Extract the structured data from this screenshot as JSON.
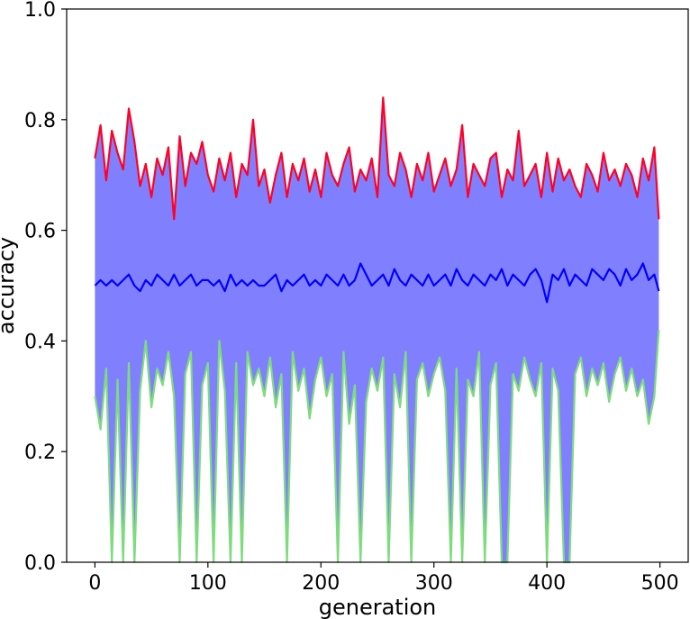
{
  "chart_data": {
    "type": "line",
    "xlabel": "generation",
    "ylabel": "accuracy",
    "xlim": [
      -25,
      525
    ],
    "ylim": [
      0.0,
      1.0
    ],
    "x_ticks": [
      0,
      100,
      200,
      300,
      400,
      500
    ],
    "x_tick_labels": [
      "0",
      "100",
      "200",
      "300",
      "400",
      "500"
    ],
    "y_ticks": [
      0.0,
      0.2,
      0.4,
      0.6,
      0.8,
      1.0
    ],
    "y_tick_labels": [
      "0.0",
      "0.2",
      "0.4",
      "0.6",
      "0.8",
      "1.0"
    ],
    "grid": false,
    "legend": "none",
    "band_color": "#8080ff",
    "series": [
      {
        "role": "max",
        "color": "#ff0028"
      },
      {
        "role": "mean",
        "color": "#0000ff"
      },
      {
        "role": "min",
        "color": "#7fdb7f"
      }
    ],
    "x": [
      0,
      5,
      10,
      15,
      20,
      25,
      30,
      35,
      40,
      45,
      50,
      55,
      60,
      65,
      70,
      75,
      80,
      85,
      90,
      95,
      100,
      105,
      110,
      115,
      120,
      125,
      130,
      135,
      140,
      145,
      150,
      155,
      160,
      165,
      170,
      175,
      180,
      185,
      190,
      195,
      200,
      205,
      210,
      215,
      220,
      225,
      230,
      235,
      240,
      245,
      250,
      255,
      260,
      265,
      270,
      275,
      280,
      285,
      290,
      295,
      300,
      305,
      310,
      315,
      320,
      325,
      330,
      335,
      340,
      345,
      350,
      355,
      360,
      365,
      370,
      375,
      380,
      385,
      390,
      395,
      400,
      405,
      410,
      415,
      420,
      425,
      430,
      435,
      440,
      445,
      450,
      455,
      460,
      465,
      470,
      475,
      480,
      485,
      490,
      495,
      499
    ],
    "max": [
      0.73,
      0.79,
      0.69,
      0.78,
      0.74,
      0.71,
      0.82,
      0.76,
      0.68,
      0.72,
      0.66,
      0.73,
      0.7,
      0.75,
      0.62,
      0.77,
      0.68,
      0.74,
      0.72,
      0.76,
      0.7,
      0.67,
      0.73,
      0.69,
      0.74,
      0.66,
      0.72,
      0.7,
      0.8,
      0.68,
      0.71,
      0.65,
      0.7,
      0.74,
      0.66,
      0.72,
      0.69,
      0.73,
      0.67,
      0.71,
      0.66,
      0.74,
      0.7,
      0.68,
      0.72,
      0.75,
      0.67,
      0.71,
      0.69,
      0.73,
      0.66,
      0.84,
      0.7,
      0.68,
      0.74,
      0.71,
      0.66,
      0.72,
      0.69,
      0.74,
      0.67,
      0.7,
      0.73,
      0.68,
      0.71,
      0.79,
      0.66,
      0.72,
      0.7,
      0.68,
      0.73,
      0.74,
      0.66,
      0.71,
      0.69,
      0.78,
      0.68,
      0.7,
      0.72,
      0.66,
      0.74,
      0.67,
      0.73,
      0.69,
      0.71,
      0.68,
      0.66,
      0.72,
      0.7,
      0.67,
      0.74,
      0.69,
      0.71,
      0.68,
      0.72,
      0.7,
      0.66,
      0.73,
      0.69,
      0.75,
      0.62
    ],
    "mean": [
      0.5,
      0.51,
      0.5,
      0.51,
      0.5,
      0.51,
      0.52,
      0.5,
      0.49,
      0.51,
      0.5,
      0.52,
      0.51,
      0.5,
      0.52,
      0.5,
      0.51,
      0.52,
      0.5,
      0.51,
      0.51,
      0.5,
      0.51,
      0.49,
      0.52,
      0.5,
      0.51,
      0.5,
      0.51,
      0.5,
      0.5,
      0.51,
      0.52,
      0.49,
      0.51,
      0.5,
      0.51,
      0.52,
      0.5,
      0.51,
      0.5,
      0.52,
      0.51,
      0.5,
      0.52,
      0.5,
      0.51,
      0.54,
      0.52,
      0.5,
      0.51,
      0.52,
      0.5,
      0.53,
      0.51,
      0.5,
      0.52,
      0.51,
      0.5,
      0.52,
      0.5,
      0.51,
      0.52,
      0.5,
      0.53,
      0.51,
      0.5,
      0.52,
      0.51,
      0.5,
      0.52,
      0.51,
      0.53,
      0.5,
      0.52,
      0.51,
      0.5,
      0.52,
      0.53,
      0.51,
      0.47,
      0.52,
      0.51,
      0.53,
      0.5,
      0.52,
      0.51,
      0.5,
      0.53,
      0.52,
      0.51,
      0.53,
      0.52,
      0.5,
      0.53,
      0.51,
      0.52,
      0.54,
      0.51,
      0.52,
      0.49
    ],
    "min": [
      0.3,
      0.24,
      0.35,
      0.0,
      0.33,
      0.0,
      0.36,
      0.0,
      0.31,
      0.4,
      0.28,
      0.35,
      0.32,
      0.38,
      0.3,
      0.0,
      0.34,
      0.38,
      0.0,
      0.32,
      0.36,
      0.0,
      0.4,
      0.31,
      0.0,
      0.36,
      0.0,
      0.38,
      0.32,
      0.35,
      0.3,
      0.37,
      0.28,
      0.34,
      0.0,
      0.38,
      0.31,
      0.35,
      0.26,
      0.33,
      0.37,
      0.3,
      0.34,
      0.0,
      0.38,
      0.25,
      0.32,
      0.0,
      0.29,
      0.35,
      0.31,
      0.37,
      0.0,
      0.34,
      0.28,
      0.38,
      0.0,
      0.33,
      0.36,
      0.3,
      0.34,
      0.37,
      0.31,
      0.0,
      0.35,
      0.0,
      0.33,
      0.3,
      0.38,
      0.0,
      0.32,
      0.36,
      0.0,
      0.0,
      0.34,
      0.31,
      0.37,
      0.33,
      0.3,
      0.36,
      0.0,
      0.35,
      0.31,
      0.0,
      0.0,
      0.34,
      0.37,
      0.3,
      0.35,
      0.32,
      0.36,
      0.29,
      0.34,
      0.37,
      0.31,
      0.35,
      0.3,
      0.33,
      0.25,
      0.3,
      0.42
    ]
  }
}
